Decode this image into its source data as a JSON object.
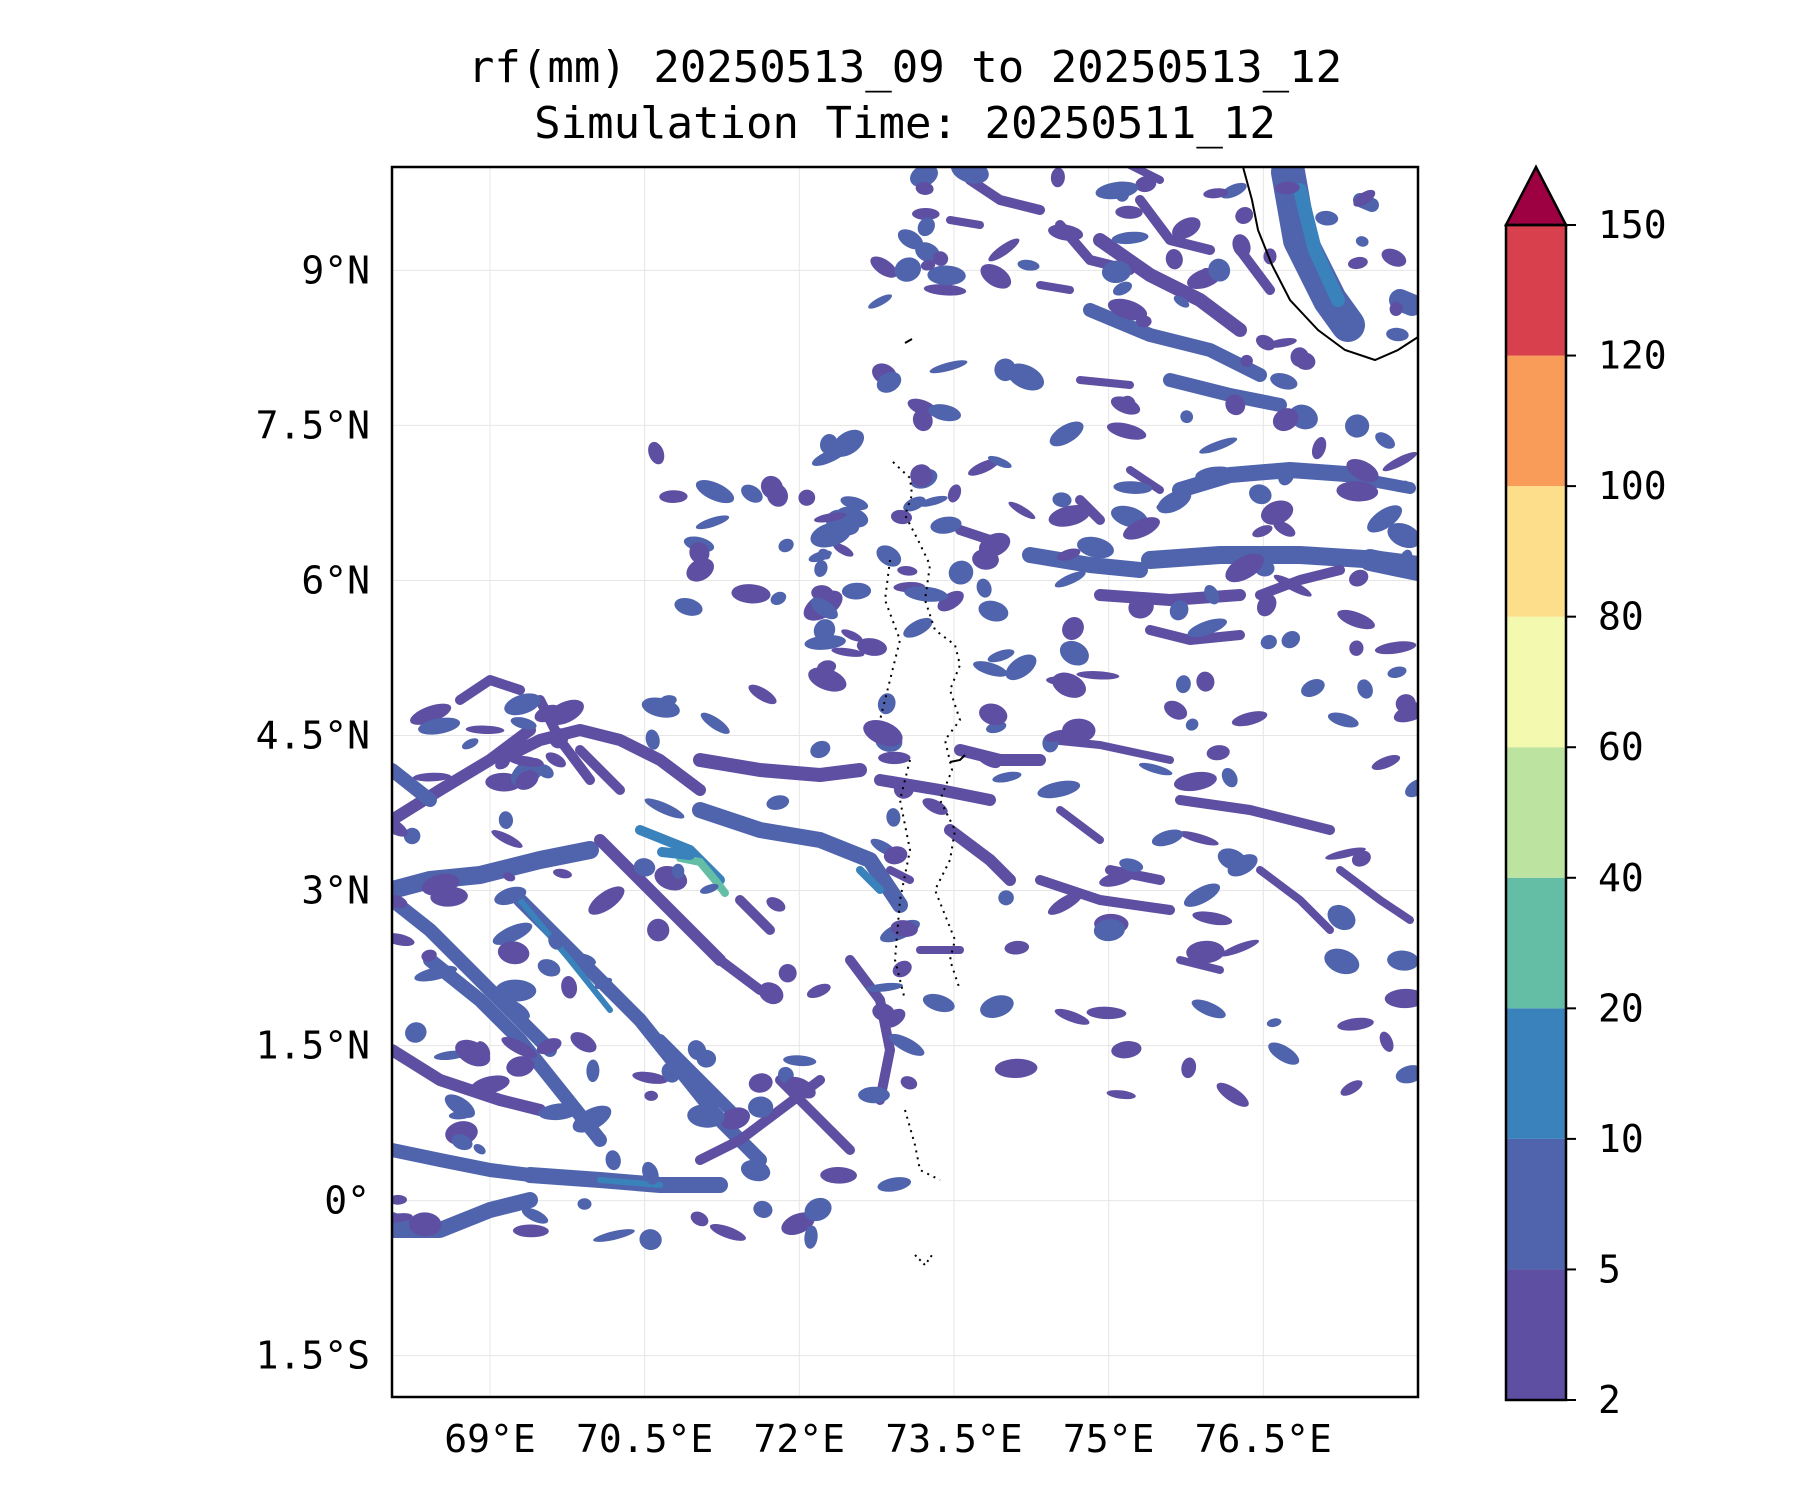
{
  "title": {
    "line1": "rf(mm) 20250513_09 to 20250513_12",
    "line2": "Simulation Time: 20250511_12"
  },
  "map": {
    "lat_ticks": [
      "9°N",
      "7.5°N",
      "6°N",
      "4.5°N",
      "3°N",
      "1.5°N",
      "0°",
      "1.5°S"
    ],
    "lon_ticks": [
      "69°E",
      "70.5°E",
      "72°E",
      "73.5°E",
      "75°E",
      "76.5°E"
    ],
    "lat_values": [
      9,
      7.5,
      6,
      4.5,
      3,
      1.5,
      0,
      -1.5
    ],
    "lon_values": [
      69,
      70.5,
      72,
      73.5,
      75,
      76.5
    ],
    "lon_range": [
      68.05,
      78.0
    ],
    "lat_range": [
      -1.9,
      10.0
    ],
    "gridlines": true,
    "land_outline_color": "#000000"
  },
  "colorbar": {
    "levels": [
      "2",
      "5",
      "10",
      "20",
      "40",
      "60",
      "80",
      "100",
      "120",
      "150"
    ],
    "colors": [
      "#5e4fa2",
      "#4f64ad",
      "#3a82bb",
      "#63bea5",
      "#bde3a0",
      "#f3f9ae",
      "#fddf8b",
      "#f99c59",
      "#d8404e",
      "#9e0142"
    ],
    "extend": "max",
    "placement": "right"
  },
  "rain_colors": {
    "band_2_5": "#5e4fa2",
    "band_5_10": "#4f64ad",
    "band_10_20": "#3a82bb",
    "band_20_40": "#63bea5"
  }
}
